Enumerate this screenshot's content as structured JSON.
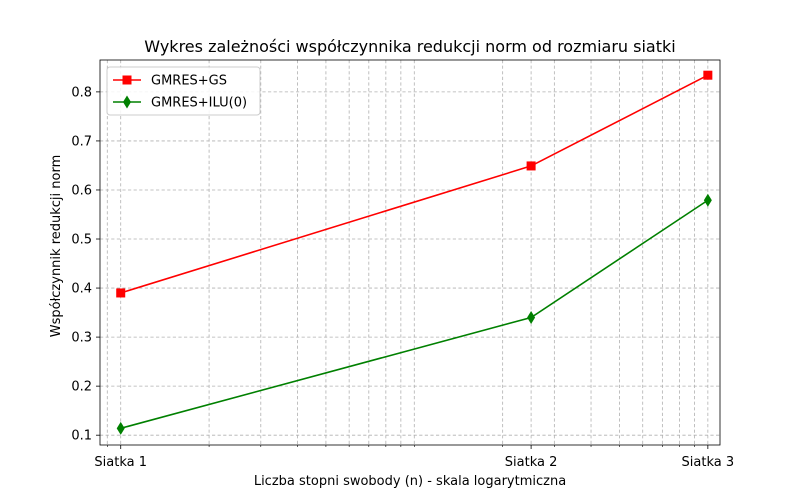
{
  "chart_data": {
    "type": "line",
    "title": "Wykres zależności współczynnika redukcji norm od rozmiaru siatki",
    "xlabel": "Liczba stopni swobody (n) - skala logarytmiczna",
    "ylabel": "Współczynnik redukcji norm",
    "x_scale": "log",
    "x": [
      100,
      2500,
      10000
    ],
    "xlim": [
      85,
      11000
    ],
    "x_tick_labels": [
      "Siatka 1",
      "Siatka 2",
      "Siatka 3"
    ],
    "ylim": [
      0.08,
      0.865
    ],
    "y_ticks": [
      0.1,
      0.2,
      0.3,
      0.4,
      0.5,
      0.6,
      0.7,
      0.8
    ],
    "y_tick_labels": [
      "0.1",
      "0.2",
      "0.3",
      "0.4",
      "0.5",
      "0.6",
      "0.7",
      "0.8"
    ],
    "grid": true,
    "legend_position": "top-left",
    "series": [
      {
        "name": "GMRES+GS",
        "values": [
          0.39,
          0.649,
          0.834
        ],
        "color": "#ff0000",
        "marker": "square"
      },
      {
        "name": "GMRES+ILU(0)",
        "values": [
          0.114,
          0.34,
          0.579
        ],
        "color": "#008000",
        "marker": "diamond"
      }
    ]
  }
}
